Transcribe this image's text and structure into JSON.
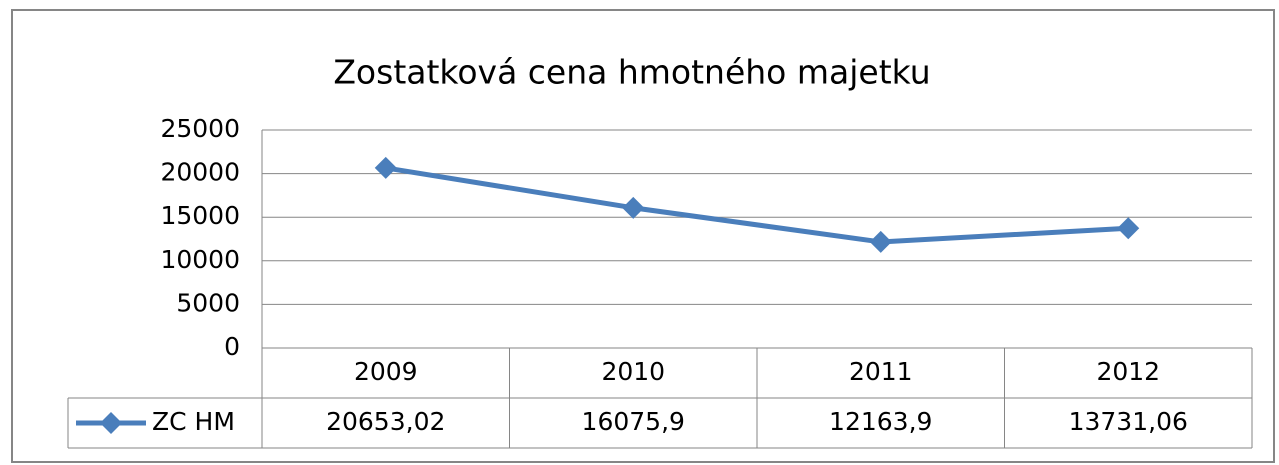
{
  "chart_data": {
    "type": "line",
    "title": "Zostatková cena hmotného majetku",
    "categories": [
      "2009",
      "2010",
      "2011",
      "2012"
    ],
    "series": [
      {
        "name": "ZC HM",
        "color": "#4a7ebb",
        "values": [
          20653.02,
          16075.9,
          12163.9,
          13731.06
        ],
        "value_labels": [
          "20653,02",
          "16075,9",
          "12163,9",
          "13731,06"
        ]
      }
    ],
    "ylim": [
      0,
      25000
    ],
    "yticks": [
      0,
      5000,
      10000,
      15000,
      20000,
      25000
    ],
    "grid": true
  }
}
